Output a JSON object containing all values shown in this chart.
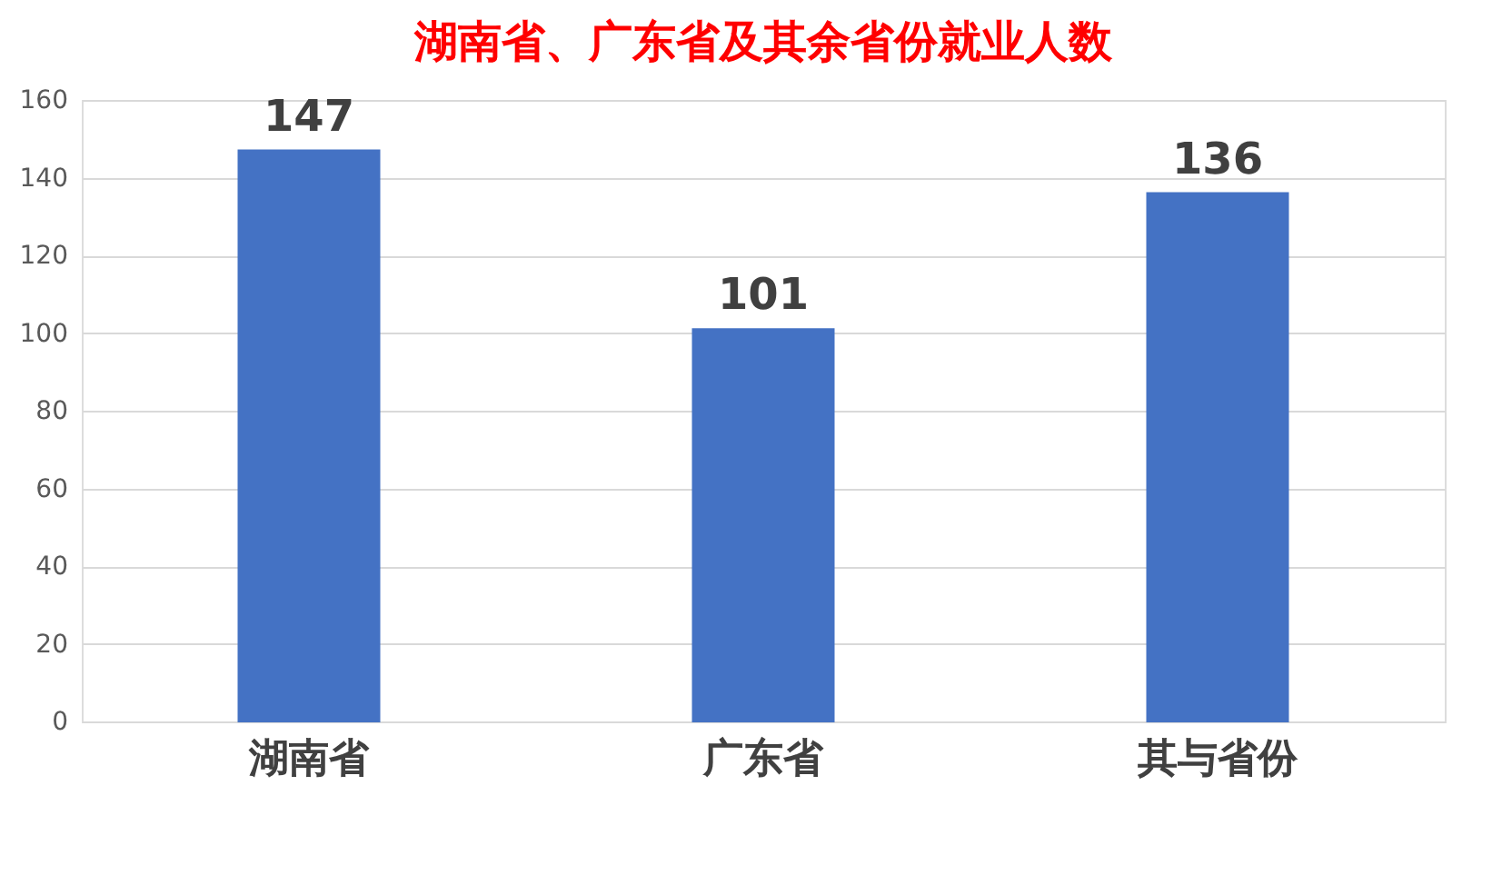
{
  "chart_data": {
    "type": "bar",
    "title": "湖南省、广东省及其余省份就业人数",
    "categories": [
      "湖南省",
      "广东省",
      "其与省份"
    ],
    "values": [
      147,
      101,
      136
    ],
    "color": "#4472c4",
    "ylim": [
      0,
      160
    ],
    "yticks": [
      0,
      20,
      40,
      60,
      80,
      100,
      120,
      140,
      160
    ],
    "grid": "y",
    "data_labels": true
  }
}
